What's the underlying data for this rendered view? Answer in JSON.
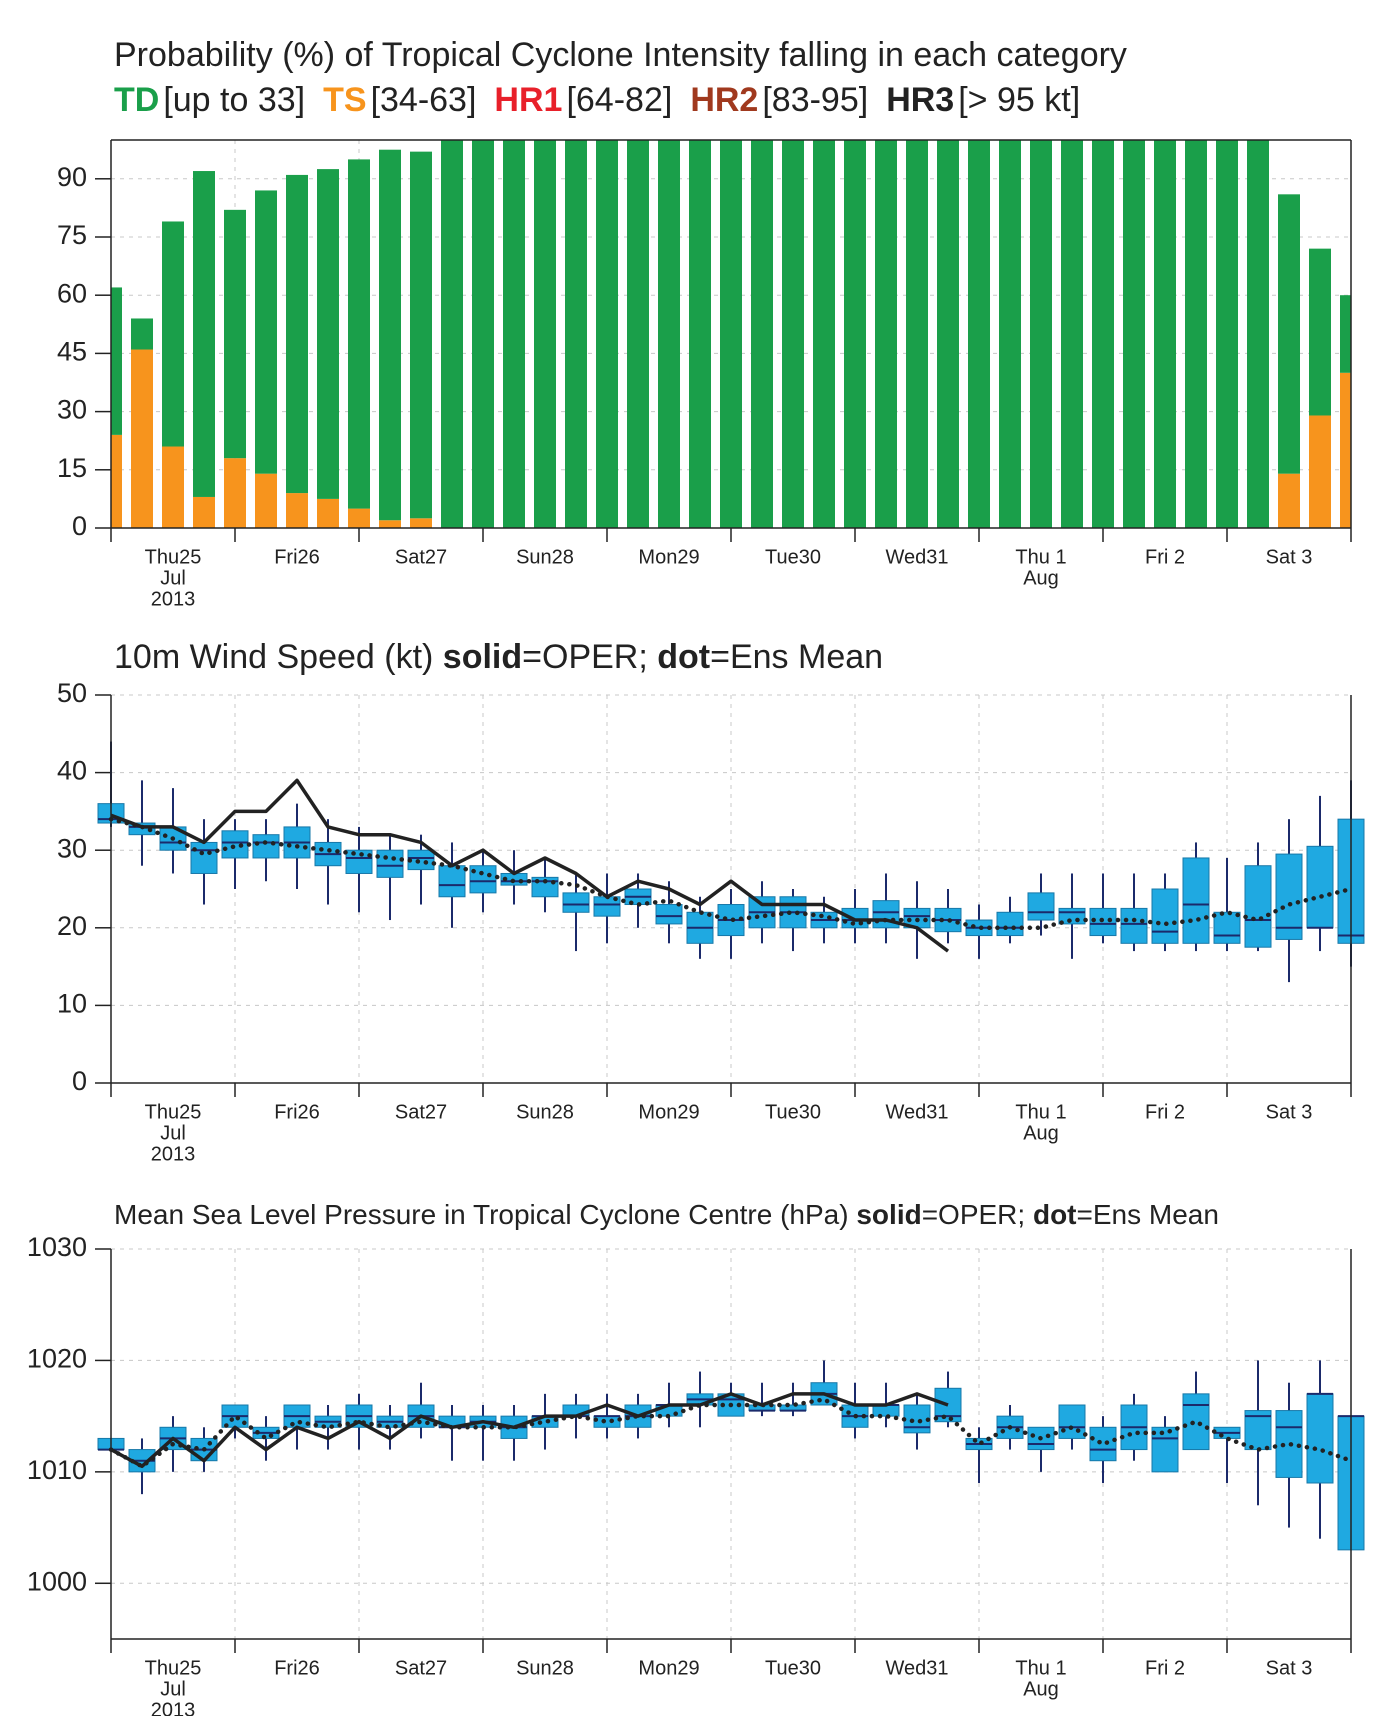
{
  "chart_data": [
    {
      "type": "stacked_bar",
      "title": "Probability (%) of Tropical Cyclone Intensity falling in each category",
      "series": [
        {
          "name": "TD",
          "range": "[up to 33]",
          "color": "#1a9f4a",
          "values": [
            38,
            8,
            58,
            84,
            64,
            73,
            82,
            85,
            90,
            95.5,
            94.5,
            100,
            100,
            100,
            100,
            100,
            100,
            100,
            100,
            100,
            100,
            100,
            100,
            100,
            100,
            100,
            100,
            100,
            100,
            100,
            100,
            100,
            100,
            100,
            100,
            100,
            100,
            100,
            72,
            43,
            20
          ]
        },
        {
          "name": "TS",
          "range": "[34-63]",
          "color": "#f7941d",
          "values": [
            24,
            46,
            21,
            8,
            18,
            14,
            9,
            7.5,
            5,
            2,
            2.5,
            0,
            0,
            0,
            0,
            0,
            0,
            0,
            0,
            0,
            0,
            0,
            0,
            0,
            0,
            0,
            0,
            0,
            0,
            0,
            0,
            0,
            0,
            0,
            0,
            0,
            0,
            0,
            14,
            29,
            40
          ]
        }
      ],
      "legend_extra": [
        {
          "name": "HR1",
          "range": "[64-82]",
          "color": "#e8202a"
        },
        {
          "name": "HR2",
          "range": "[83-95]",
          "color": "#a0391e"
        },
        {
          "name": "HR3",
          "range": "[> 95 kt]",
          "color": "#222222"
        }
      ],
      "days": [
        {
          "lines": [
            "Thu25",
            "Jul",
            "2013"
          ]
        },
        {
          "lines": [
            "Fri26"
          ]
        },
        {
          "lines": [
            "Sat27"
          ]
        },
        {
          "lines": [
            "Sun28"
          ],
          "color": "#e8202a"
        },
        {
          "lines": [
            "Mon29"
          ]
        },
        {
          "lines": [
            "Tue30"
          ]
        },
        {
          "lines": [
            "Wed31"
          ]
        },
        {
          "lines": [
            "Thu 1",
            "Aug"
          ]
        },
        {
          "lines": [
            "Fri 2"
          ]
        },
        {
          "lines": [
            "Sat 3"
          ]
        }
      ],
      "ylim": [
        0,
        100
      ],
      "yticks": [
        0,
        15,
        30,
        45,
        60,
        75,
        90
      ],
      "grid": true
    },
    {
      "type": "boxplot",
      "title": [
        {
          "text": "10m Wind Speed (kt) "
        },
        {
          "text": "solid",
          "bold": true
        },
        {
          "text": "=OPER; "
        },
        {
          "text": "dot",
          "bold": true
        },
        {
          "text": "=Ens Mean"
        }
      ],
      "box_color": "#1fa9e1",
      "boxes": {
        "low": [
          33,
          28,
          27,
          23,
          25,
          26,
          25,
          23,
          22,
          21,
          23,
          20,
          22,
          23,
          22,
          17,
          18,
          20,
          18,
          16,
          16,
          18,
          17,
          18,
          18,
          18,
          16,
          18,
          16,
          18,
          19,
          16,
          18,
          17,
          17,
          17,
          17,
          17,
          13,
          17,
          15
        ],
        "q1": [
          33.5,
          32,
          30,
          27,
          29,
          29,
          29,
          28,
          27,
          26.5,
          27.5,
          24,
          24.5,
          25.5,
          24,
          22,
          21.5,
          23,
          20.5,
          18,
          19,
          20,
          20,
          20,
          20,
          20,
          20,
          19.5,
          19,
          19,
          21,
          20.5,
          19,
          18,
          18,
          18,
          18,
          17.5,
          18.5,
          20,
          18
        ],
        "median": [
          34,
          33,
          31,
          30,
          31,
          31,
          31,
          29.5,
          29,
          28,
          29,
          25.5,
          26,
          26,
          26,
          23,
          23,
          24,
          21.5,
          20,
          21,
          22,
          22,
          21,
          21,
          22,
          21.5,
          21,
          20,
          20,
          22,
          22,
          20.5,
          20.5,
          19.5,
          23,
          19,
          21,
          20,
          20,
          19
        ],
        "q3": [
          36,
          33.5,
          33,
          31,
          32.5,
          32,
          33,
          31,
          30,
          30,
          30,
          28,
          28,
          27,
          26.5,
          24.5,
          24,
          25,
          23,
          22,
          23,
          24,
          24,
          22,
          22.5,
          23.5,
          22.5,
          22.5,
          21,
          22,
          24.5,
          22.5,
          22.5,
          22.5,
          25,
          29,
          22,
          28,
          29.5,
          30.5,
          34
        ],
        "high": [
          44,
          39,
          38,
          34,
          34,
          34,
          36,
          34,
          33,
          32,
          32,
          31,
          30,
          30,
          29,
          27,
          27,
          27,
          26,
          24,
          25,
          26,
          25,
          24,
          25,
          27,
          26,
          25,
          23,
          24,
          27,
          27,
          27,
          27,
          27,
          31,
          29,
          31,
          34,
          37,
          39
        ]
      },
      "series": [
        {
          "style": "solid",
          "color": "#222222",
          "values": [
            34.5,
            33,
            33,
            31,
            35,
            35,
            39,
            33,
            32,
            32,
            31,
            28,
            30,
            27,
            29,
            27,
            24,
            26,
            25,
            23,
            26,
            23,
            23,
            23,
            21,
            21,
            20,
            17,
            null,
            null,
            null,
            null,
            null,
            null,
            null,
            null,
            null,
            null,
            null,
            null,
            null
          ]
        },
        {
          "style": "dot",
          "color": "#222222",
          "values": [
            34,
            33,
            31.5,
            29.5,
            30.5,
            31,
            30.5,
            30,
            29.5,
            29,
            28.5,
            28,
            27,
            26,
            26,
            25.5,
            24,
            23,
            23.5,
            22,
            21,
            21.5,
            22,
            21.5,
            20.5,
            21,
            21,
            21,
            20,
            20,
            20,
            21,
            21,
            21,
            20.5,
            21,
            22,
            21,
            23,
            24,
            25
          ]
        }
      ],
      "days": [
        {
          "lines": [
            "Thu25",
            "Jul",
            "2013"
          ]
        },
        {
          "lines": [
            "Fri26"
          ]
        },
        {
          "lines": [
            "Sat27"
          ]
        },
        {
          "lines": [
            "Sun28"
          ],
          "color": "#e8202a"
        },
        {
          "lines": [
            "Mon29"
          ]
        },
        {
          "lines": [
            "Tue30"
          ]
        },
        {
          "lines": [
            "Wed31"
          ]
        },
        {
          "lines": [
            "Thu 1",
            "Aug"
          ]
        },
        {
          "lines": [
            "Fri 2"
          ]
        },
        {
          "lines": [
            "Sat 3"
          ]
        }
      ],
      "ylim": [
        0,
        50
      ],
      "yticks": [
        0,
        10,
        20,
        30,
        40,
        50
      ],
      "grid": true
    },
    {
      "type": "boxplot",
      "title": [
        {
          "text": "Mean Sea Level Pressure in Tropical Cyclone Centre (hPa) "
        },
        {
          "text": "solid",
          "bold": true
        },
        {
          "text": "=OPER; "
        },
        {
          "text": "dot",
          "bold": true
        },
        {
          "text": "=Ens Mean"
        }
      ],
      "box_color": "#1fa9e1",
      "boxes": {
        "low": [
          1012,
          1008,
          1010,
          1010,
          1013,
          1011,
          1012,
          1012,
          1012,
          1012,
          1013,
          1011,
          1011,
          1011,
          1012,
          1013,
          1013,
          1013,
          1014,
          1014,
          1015,
          1015,
          1015,
          1016,
          1013,
          1014,
          1012,
          1014,
          1009,
          1012,
          1010,
          1012,
          1009,
          1011,
          1010,
          1012,
          1009,
          1007,
          1005,
          1004,
          1003
        ],
        "q1": [
          1012,
          1010,
          1012,
          1011,
          1014,
          1013,
          1014,
          1014,
          1014,
          1014,
          1014,
          1014,
          1014,
          1013,
          1014,
          1015,
          1014,
          1014,
          1015,
          1016,
          1015,
          1015.5,
          1015.5,
          1016,
          1014,
          1015,
          1013.5,
          1014.5,
          1012,
          1013,
          1012,
          1013,
          1011,
          1012,
          1010,
          1012,
          1013,
          1012,
          1009.5,
          1009,
          1003
        ],
        "median": [
          1012,
          1011,
          1013,
          1012,
          1015,
          1013.5,
          1015,
          1014.5,
          1015,
          1014.5,
          1015,
          1014,
          1014.5,
          1014,
          1015,
          1015,
          1015,
          1015,
          1016,
          1016.5,
          1016.5,
          1015.5,
          1015.5,
          1017,
          1015,
          1016,
          1014,
          1015,
          1012.5,
          1014,
          1012.5,
          1014,
          1012,
          1014,
          1013,
          1016,
          1013.5,
          1015,
          1014,
          1017,
          1015
        ],
        "q3": [
          1013,
          1012,
          1014,
          1013,
          1016,
          1014,
          1016,
          1015,
          1016,
          1015,
          1016,
          1015,
          1015,
          1015,
          1015,
          1016,
          1015,
          1016,
          1016,
          1017,
          1017,
          1016,
          1016,
          1018,
          1016,
          1016,
          1016,
          1017.5,
          1013,
          1015,
          1014,
          1016,
          1014,
          1016,
          1014,
          1017,
          1014,
          1015.5,
          1015.5,
          1017,
          1015
        ],
        "high": [
          1013,
          1013,
          1015,
          1014,
          1016,
          1015,
          1016,
          1016,
          1017,
          1016,
          1018,
          1016,
          1016,
          1016,
          1017,
          1017,
          1017,
          1017,
          1018,
          1019,
          1018,
          1018,
          1018,
          1020,
          1018,
          1018,
          1017,
          1019,
          1014,
          1016,
          1014,
          1016,
          1015,
          1017,
          1015,
          1019,
          1014,
          1020,
          1018,
          1020,
          1015
        ]
      },
      "series": [
        {
          "style": "solid",
          "color": "#222222",
          "values": [
            1012,
            1010.5,
            1013,
            1011,
            1014,
            1012,
            1014,
            1013,
            1014.5,
            1013,
            1015,
            1014,
            1014.5,
            1014,
            1015,
            1015,
            1016,
            1015,
            1016,
            1016,
            1017,
            1016,
            1017,
            1017,
            1016,
            1016,
            1017,
            1016,
            null,
            null,
            null,
            null,
            null,
            null,
            null,
            null,
            null,
            null,
            null,
            null,
            null
          ]
        },
        {
          "style": "dot",
          "color": "#222222",
          "values": [
            1012,
            1010.5,
            1012.5,
            1012,
            1015,
            1013,
            1014.5,
            1014,
            1014.5,
            1014,
            1014.5,
            1014,
            1014,
            1014,
            1014.5,
            1015,
            1014.5,
            1015,
            1015,
            1016,
            1016,
            1016,
            1016,
            1016.5,
            1015,
            1015,
            1014.5,
            1015,
            1012.5,
            1014,
            1013,
            1014,
            1012.5,
            1013.5,
            1013.5,
            1014.5,
            1013,
            1012,
            1012.5,
            1012,
            1011
          ]
        }
      ],
      "days": [
        {
          "lines": [
            "Thu25",
            "Jul",
            "2013"
          ]
        },
        {
          "lines": [
            "Fri26"
          ]
        },
        {
          "lines": [
            "Sat27"
          ]
        },
        {
          "lines": [
            "Sun28"
          ],
          "color": "#e8202a"
        },
        {
          "lines": [
            "Mon29"
          ]
        },
        {
          "lines": [
            "Tue30"
          ]
        },
        {
          "lines": [
            "Wed31"
          ]
        },
        {
          "lines": [
            "Thu 1",
            "Aug"
          ]
        },
        {
          "lines": [
            "Fri 2"
          ]
        },
        {
          "lines": [
            "Sat 3"
          ]
        }
      ],
      "ylim": [
        995,
        1030
      ],
      "yticks": [
        1000,
        1010,
        1020,
        1030
      ],
      "grid": true
    }
  ]
}
